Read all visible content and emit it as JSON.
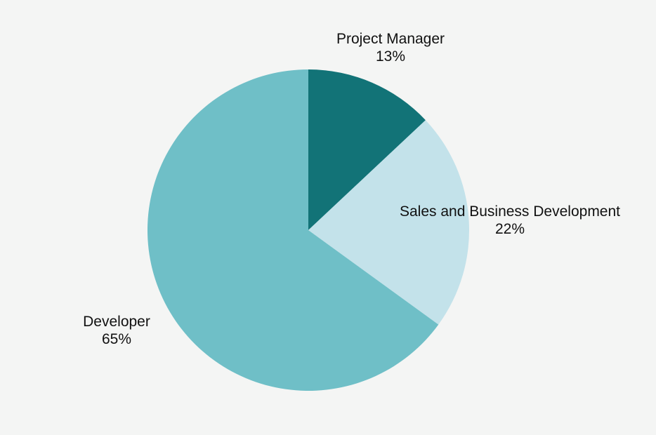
{
  "chart_data": {
    "type": "pie",
    "start_angle_deg": 0,
    "direction": "clockwise",
    "slices": [
      {
        "label": "Project Manager",
        "value": 13,
        "value_label": "13%",
        "color": "#127377"
      },
      {
        "label": "Sales and Business Development",
        "value": 22,
        "value_label": "22%",
        "color": "#c3e2ea"
      },
      {
        "label": "Developer",
        "value": 65,
        "value_label": "65%",
        "color": "#6fbfc7"
      }
    ]
  }
}
